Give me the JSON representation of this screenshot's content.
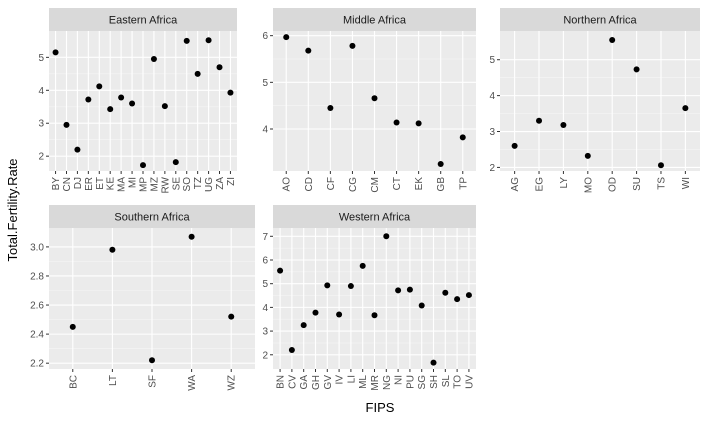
{
  "chart_data": {
    "type": "scatter",
    "xlabel": "FIPS",
    "ylabel": "Total.Fertility.Rate",
    "point_color": "#000000",
    "panel_background": "#ebebeb",
    "strip_background": "#d9d9d9",
    "grid": true,
    "facets": [
      {
        "name": "Eastern Africa",
        "categories": [
          "BY",
          "CN",
          "DJ",
          "ER",
          "ET",
          "KE",
          "MA",
          "MI",
          "MP",
          "MZ",
          "RW",
          "SE",
          "SO",
          "TZ",
          "UG",
          "ZA",
          "ZI"
        ],
        "values": [
          5.15,
          2.95,
          2.2,
          3.72,
          4.12,
          3.43,
          3.78,
          3.6,
          1.73,
          4.95,
          3.52,
          1.82,
          5.5,
          4.5,
          5.52,
          4.7,
          3.93
        ],
        "yticks": [
          2,
          3,
          4,
          5
        ],
        "ylim": [
          1.55,
          5.8
        ]
      },
      {
        "name": "Middle Africa",
        "categories": [
          "AO",
          "CD",
          "CF",
          "CG",
          "CM",
          "CT",
          "EK",
          "GB",
          "TP"
        ],
        "values": [
          5.97,
          5.68,
          4.45,
          5.78,
          4.66,
          4.14,
          4.12,
          3.25,
          3.82
        ],
        "yticks": [
          4,
          5,
          6
        ],
        "ylim": [
          3.1,
          6.1
        ]
      },
      {
        "name": "Northern Africa",
        "categories": [
          "AG",
          "EG",
          "LY",
          "MO",
          "OD",
          "SU",
          "TS",
          "WI"
        ],
        "values": [
          2.6,
          3.3,
          3.18,
          2.32,
          5.55,
          4.73,
          2.06,
          3.65
        ],
        "yticks": [
          2,
          3,
          4,
          5
        ],
        "ylim": [
          1.9,
          5.8
        ]
      },
      {
        "name": "Southern Africa",
        "categories": [
          "BC",
          "LT",
          "SF",
          "WA",
          "WZ"
        ],
        "values": [
          2.45,
          2.98,
          2.22,
          3.07,
          2.52
        ],
        "yticks": [
          2.2,
          2.4,
          2.6,
          2.8,
          3.0
        ],
        "ytick_labels": [
          "2.2",
          "2.4",
          "2.6",
          "2.8",
          "3.0"
        ],
        "ylim": [
          2.16,
          3.13
        ]
      },
      {
        "name": "Western Africa",
        "categories": [
          "BN",
          "CV",
          "GA",
          "GH",
          "GV",
          "IV",
          "LI",
          "ML",
          "MR",
          "NG",
          "NI",
          "PU",
          "SG",
          "SH",
          "SL",
          "TO",
          "UV"
        ],
        "values": [
          5.55,
          2.2,
          3.25,
          3.78,
          4.93,
          3.7,
          4.9,
          5.75,
          3.67,
          7.0,
          4.72,
          4.75,
          4.08,
          1.67,
          4.62,
          4.35,
          4.52
        ],
        "yticks": [
          2,
          3,
          4,
          5,
          6,
          7
        ],
        "ytick_labels": [
          "2",
          "3",
          "4",
          "5",
          "6",
          "7"
        ],
        "ylim": [
          1.4,
          7.35
        ]
      }
    ]
  }
}
